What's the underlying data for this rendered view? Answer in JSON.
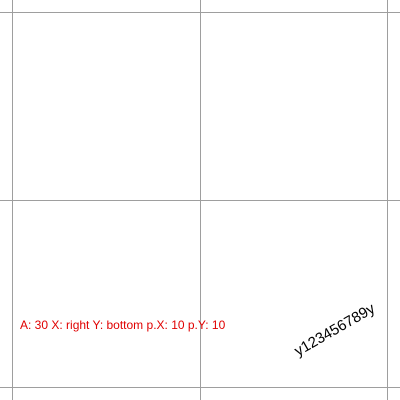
{
  "readout": {
    "text": "A: 30 X: right Y: bottom p.X: 10 p.Y: 10",
    "color": "#e00000"
  },
  "rotated_sample": {
    "text": "y123456789y"
  },
  "grid": {
    "color": "#9e9e9e"
  }
}
